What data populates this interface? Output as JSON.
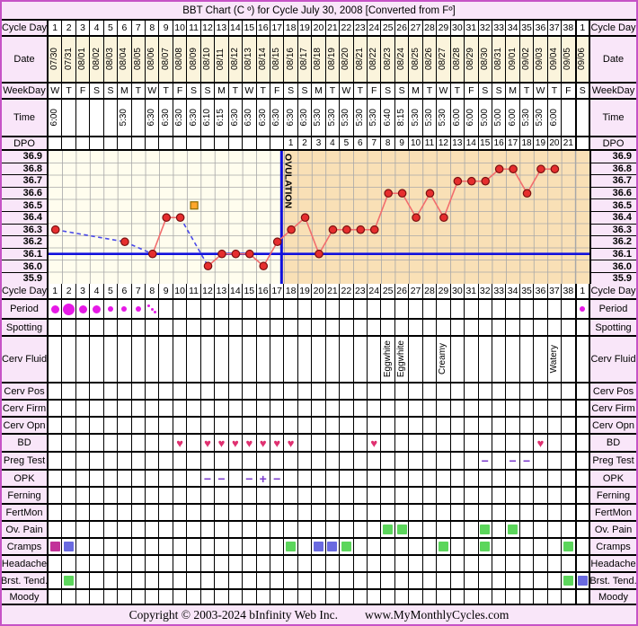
{
  "title": "BBT Chart (C º) for Cycle July 30, 2008  [Converted from Fº]",
  "labels": {
    "cycle_day": "Cycle Day",
    "date": "Date",
    "weekday": "WeekDay",
    "time": "Time",
    "dpo": "DPO"
  },
  "days": [
    {
      "day": "1",
      "date": "07/30",
      "weekday": "W",
      "time": "6:00",
      "dpo": ""
    },
    {
      "day": "2",
      "date": "07/31",
      "weekday": "T",
      "time": "",
      "dpo": ""
    },
    {
      "day": "3",
      "date": "08/01",
      "weekday": "F",
      "time": "",
      "dpo": ""
    },
    {
      "day": "4",
      "date": "08/02",
      "weekday": "S",
      "time": "",
      "dpo": ""
    },
    {
      "day": "5",
      "date": "08/03",
      "weekday": "S",
      "time": "",
      "dpo": ""
    },
    {
      "day": "6",
      "date": "08/04",
      "weekday": "M",
      "time": "5:30",
      "dpo": ""
    },
    {
      "day": "7",
      "date": "08/05",
      "weekday": "T",
      "time": "",
      "dpo": ""
    },
    {
      "day": "8",
      "date": "08/06",
      "weekday": "W",
      "time": "6:30",
      "dpo": ""
    },
    {
      "day": "9",
      "date": "08/07",
      "weekday": "T",
      "time": "6:30",
      "dpo": ""
    },
    {
      "day": "10",
      "date": "08/08",
      "weekday": "F",
      "time": "6:30",
      "dpo": ""
    },
    {
      "day": "11",
      "date": "08/09",
      "weekday": "S",
      "time": "6:30",
      "dpo": ""
    },
    {
      "day": "12",
      "date": "08/10",
      "weekday": "S",
      "time": "6:10",
      "dpo": ""
    },
    {
      "day": "13",
      "date": "08/11",
      "weekday": "M",
      "time": "6:15",
      "dpo": ""
    },
    {
      "day": "14",
      "date": "08/12",
      "weekday": "T",
      "time": "6:30",
      "dpo": ""
    },
    {
      "day": "15",
      "date": "08/13",
      "weekday": "W",
      "time": "6:30",
      "dpo": ""
    },
    {
      "day": "16",
      "date": "08/14",
      "weekday": "T",
      "time": "6:30",
      "dpo": ""
    },
    {
      "day": "17",
      "date": "08/15",
      "weekday": "F",
      "time": "6:30",
      "dpo": ""
    },
    {
      "day": "18",
      "date": "08/16",
      "weekday": "S",
      "time": "6:30",
      "dpo": "1"
    },
    {
      "day": "19",
      "date": "08/17",
      "weekday": "S",
      "time": "6:30",
      "dpo": "2"
    },
    {
      "day": "20",
      "date": "08/18",
      "weekday": "M",
      "time": "5:30",
      "dpo": "3"
    },
    {
      "day": "21",
      "date": "08/19",
      "weekday": "T",
      "time": "5:30",
      "dpo": "4"
    },
    {
      "day": "22",
      "date": "08/20",
      "weekday": "W",
      "time": "5:30",
      "dpo": "5"
    },
    {
      "day": "23",
      "date": "08/21",
      "weekday": "T",
      "time": "5:30",
      "dpo": "6"
    },
    {
      "day": "24",
      "date": "08/22",
      "weekday": "F",
      "time": "5:30",
      "dpo": "7"
    },
    {
      "day": "25",
      "date": "08/23",
      "weekday": "S",
      "time": "6:40",
      "dpo": "8"
    },
    {
      "day": "26",
      "date": "08/24",
      "weekday": "S",
      "time": "8:15",
      "dpo": "9"
    },
    {
      "day": "27",
      "date": "08/25",
      "weekday": "M",
      "time": "5:30",
      "dpo": "10"
    },
    {
      "day": "28",
      "date": "08/26",
      "weekday": "T",
      "time": "5:30",
      "dpo": "11"
    },
    {
      "day": "29",
      "date": "08/27",
      "weekday": "W",
      "time": "5:30",
      "dpo": "12"
    },
    {
      "day": "30",
      "date": "08/28",
      "weekday": "T",
      "time": "6:00",
      "dpo": "13"
    },
    {
      "day": "31",
      "date": "08/29",
      "weekday": "F",
      "time": "6:00",
      "dpo": "14"
    },
    {
      "day": "32",
      "date": "08/30",
      "weekday": "S",
      "time": "5:00",
      "dpo": "15"
    },
    {
      "day": "33",
      "date": "08/31",
      "weekday": "S",
      "time": "5:00",
      "dpo": "16"
    },
    {
      "day": "34",
      "date": "09/01",
      "weekday": "M",
      "time": "6:00",
      "dpo": "17"
    },
    {
      "day": "35",
      "date": "09/02",
      "weekday": "T",
      "time": "5:30",
      "dpo": "18"
    },
    {
      "day": "36",
      "date": "09/03",
      "weekday": "W",
      "time": "5:30",
      "dpo": "19"
    },
    {
      "day": "37",
      "date": "09/04",
      "weekday": "T",
      "time": "6:00",
      "dpo": "20"
    },
    {
      "day": "38",
      "date": "09/05",
      "weekday": "F",
      "time": "",
      "dpo": "21"
    },
    {
      "day": "1",
      "date": "09/06",
      "weekday": "S",
      "time": "",
      "dpo": ""
    }
  ],
  "chart_data": {
    "type": "line",
    "title": "BBT Chart (C º) for Cycle July 30, 2008  [Converted from Fº]",
    "yticks": [
      "36.9",
      "36.8",
      "36.7",
      "36.6",
      "36.5",
      "36.4",
      "36.3",
      "36.2",
      "36.1",
      "36.0",
      "35.9"
    ],
    "ylim": [
      35.85,
      36.95
    ],
    "x_is_cycle_day": true,
    "xlim": [
      1,
      39
    ],
    "coverline_temp": 36.15,
    "ovulation_day": 17,
    "ovulation_label": "OVULATION",
    "temps": [
      {
        "day": 1,
        "temp": 36.3
      },
      {
        "day": 6,
        "temp": 36.2
      },
      {
        "day": 8,
        "temp": 36.1
      },
      {
        "day": 9,
        "temp": 36.4
      },
      {
        "day": 10,
        "temp": 36.4
      },
      {
        "day": 12,
        "temp": 36.0
      },
      {
        "day": 13,
        "temp": 36.1
      },
      {
        "day": 14,
        "temp": 36.1
      },
      {
        "day": 15,
        "temp": 36.1
      },
      {
        "day": 16,
        "temp": 36.0
      },
      {
        "day": 17,
        "temp": 36.2
      },
      {
        "day": 18,
        "temp": 36.3
      },
      {
        "day": 19,
        "temp": 36.4
      },
      {
        "day": 20,
        "temp": 36.1
      },
      {
        "day": 21,
        "temp": 36.3
      },
      {
        "day": 22,
        "temp": 36.3
      },
      {
        "day": 23,
        "temp": 36.3
      },
      {
        "day": 24,
        "temp": 36.3
      },
      {
        "day": 25,
        "temp": 36.6
      },
      {
        "day": 26,
        "temp": 36.6
      },
      {
        "day": 27,
        "temp": 36.4
      },
      {
        "day": 28,
        "temp": 36.6
      },
      {
        "day": 29,
        "temp": 36.4
      },
      {
        "day": 30,
        "temp": 36.7
      },
      {
        "day": 31,
        "temp": 36.7
      },
      {
        "day": 32,
        "temp": 36.7
      },
      {
        "day": 33,
        "temp": 36.8
      },
      {
        "day": 34,
        "temp": 36.8
      },
      {
        "day": 35,
        "temp": 36.6
      },
      {
        "day": 36,
        "temp": 36.8
      },
      {
        "day": 37,
        "temp": 36.8
      }
    ],
    "discarded_temps": [
      {
        "day": 11,
        "temp": 36.5
      }
    ],
    "colors": {
      "bg_pre": "#FFFDEE",
      "bg_post": "#F9E0B6",
      "grid": "#A8A8A8",
      "line_blue": "#1111DD",
      "line_temp": "#F26D6D",
      "line_missing": "#4A4AE8",
      "dot_fill": "#E62E2E",
      "dot_stroke": "#7A1010",
      "discarded_fill": "#FFA62B",
      "discarded_stroke": "#8A6A00"
    }
  },
  "symptom_rows": [
    {
      "id": "period",
      "label": "Period",
      "markers": {
        "1": "period-medium",
        "2": "period-heavy",
        "3": "period-medium",
        "4": "period-medium",
        "5": "period-light",
        "6": "period-light",
        "7": "period-light",
        "8": "period-spotting",
        "39": "period-light"
      }
    },
    {
      "id": "spotting",
      "label": "Spotting",
      "markers": {}
    },
    {
      "id": "cerv-fluid",
      "label": "Cerv Fluid",
      "markers": {
        "25": "Eggwhite",
        "26": "Eggwhite",
        "29": "Creamy",
        "37": "Watery"
      }
    },
    {
      "id": "cerv-pos",
      "label": "Cerv Pos",
      "markers": {}
    },
    {
      "id": "cerv-firm",
      "label": "Cerv Firm",
      "markers": {}
    },
    {
      "id": "cerv-opn",
      "label": "Cerv Opn",
      "markers": {}
    },
    {
      "id": "bd",
      "label": "BD",
      "markers": {
        "10": "heart",
        "12": "heart",
        "13": "heart",
        "14": "heart",
        "15": "heart",
        "16": "heart",
        "17": "heart",
        "18": "heart",
        "24": "heart",
        "36": "heart"
      }
    },
    {
      "id": "preg-test",
      "label": "Preg Test",
      "markers": {
        "32": "neg",
        "34": "neg",
        "35": "neg"
      }
    },
    {
      "id": "opk",
      "label": "OPK",
      "markers": {
        "12": "neg",
        "13": "neg",
        "15": "neg",
        "16": "pos",
        "17": "neg"
      }
    },
    {
      "id": "ferning",
      "label": "Ferning",
      "markers": {}
    },
    {
      "id": "fertmon",
      "label": "FertMon",
      "markers": {}
    },
    {
      "id": "ov-pain",
      "label": "Ov. Pain",
      "markers": {
        "25": "square-green",
        "26": "square-green",
        "32": "square-green",
        "34": "square-green"
      }
    },
    {
      "id": "cramps",
      "label": "Cramps",
      "markers": {
        "1": "square-magenta",
        "2": "square-blue",
        "18": "square-green",
        "20": "square-blue",
        "21": "square-blue",
        "22": "square-green",
        "29": "square-green",
        "32": "square-green",
        "38": "square-green"
      }
    },
    {
      "id": "headache",
      "label": "Headache",
      "markers": {}
    },
    {
      "id": "brst-tend",
      "label": "Brst. Tend.",
      "markers": {
        "2": "square-green",
        "38": "square-green",
        "39": "square-blue"
      }
    },
    {
      "id": "moody",
      "label": "Moody",
      "markers": {}
    }
  ],
  "footer": {
    "copyright": "Copyright © 2003-2024 bInfinity Web Inc.",
    "website": "www.MyMonthlyCycles.com"
  }
}
